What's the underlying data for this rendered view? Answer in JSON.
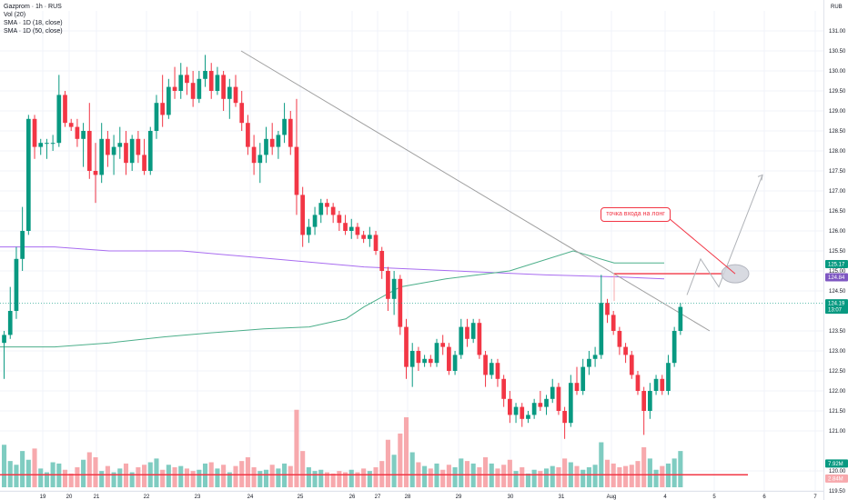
{
  "legend": {
    "symbol_line": "Gazprom · 1h · RUS",
    "vol_line": "Vol (20)",
    "sma1_line": "SMA · 1D (18, close)",
    "sma2_line": "SMA · 1D (50, close)"
  },
  "currency": "RUB",
  "annotation": "точка входа на лонг",
  "colors": {
    "up": "#089981",
    "down": "#f23645",
    "vol_up": "#7fccc1",
    "vol_down": "#f7a9ad",
    "sma18": "#4caf8a",
    "sma50": "#a86cf0",
    "hline": "#f23645",
    "trend": "#9e9e9e"
  },
  "chart_data": {
    "type": "candlestick",
    "ylim": [
      119.5,
      131.5
    ],
    "y_ticks": [
      "131.00",
      "130.50",
      "130.00",
      "129.50",
      "129.00",
      "128.50",
      "128.00",
      "127.50",
      "127.00",
      "126.50",
      "126.00",
      "125.50",
      "125.00",
      "124.50",
      "123.50",
      "123.00",
      "122.50",
      "122.00",
      "121.50",
      "121.00",
      "120.00",
      "119.50"
    ],
    "x_ticks": [
      "19",
      "20",
      "21",
      "22",
      "23",
      "24",
      "25",
      "26",
      "27",
      "28",
      "29",
      "30",
      "31",
      "Aug",
      "4",
      "5",
      "6",
      "7"
    ],
    "candles": [
      {
        "o": 123.2,
        "h": 123.5,
        "l": 122.3,
        "c": 123.4
      },
      {
        "o": 123.4,
        "h": 124.6,
        "l": 123.3,
        "c": 124.0
      },
      {
        "o": 124.0,
        "h": 125.6,
        "l": 123.8,
        "c": 125.3
      },
      {
        "o": 125.3,
        "h": 126.6,
        "l": 125.0,
        "c": 126.0
      },
      {
        "o": 126.0,
        "h": 128.9,
        "l": 125.9,
        "c": 128.8
      },
      {
        "o": 128.8,
        "h": 128.9,
        "l": 127.8,
        "c": 128.1
      },
      {
        "o": 128.1,
        "h": 128.3,
        "l": 127.9,
        "c": 128.2
      },
      {
        "o": 128.2,
        "h": 128.3,
        "l": 127.8,
        "c": 128.2
      },
      {
        "o": 128.2,
        "h": 128.4,
        "l": 128.0,
        "c": 128.2
      },
      {
        "o": 128.2,
        "h": 129.9,
        "l": 128.1,
        "c": 129.4
      },
      {
        "o": 129.4,
        "h": 129.5,
        "l": 128.6,
        "c": 128.7
      },
      {
        "o": 128.7,
        "h": 128.8,
        "l": 128.5,
        "c": 128.6
      },
      {
        "o": 128.6,
        "h": 128.8,
        "l": 128.1,
        "c": 128.3
      },
      {
        "o": 128.3,
        "h": 128.7,
        "l": 127.6,
        "c": 128.5
      },
      {
        "o": 128.5,
        "h": 129.2,
        "l": 127.3,
        "c": 127.5
      },
      {
        "o": 127.5,
        "h": 128.2,
        "l": 126.7,
        "c": 127.4
      },
      {
        "o": 127.4,
        "h": 128.7,
        "l": 127.2,
        "c": 128.3
      },
      {
        "o": 128.3,
        "h": 128.5,
        "l": 127.6,
        "c": 127.9
      },
      {
        "o": 127.9,
        "h": 128.4,
        "l": 127.4,
        "c": 128.1
      },
      {
        "o": 128.1,
        "h": 128.6,
        "l": 127.8,
        "c": 128.2
      },
      {
        "o": 128.2,
        "h": 128.5,
        "l": 127.4,
        "c": 127.7
      },
      {
        "o": 127.7,
        "h": 128.4,
        "l": 127.5,
        "c": 128.3
      },
      {
        "o": 128.3,
        "h": 128.5,
        "l": 127.7,
        "c": 127.9
      },
      {
        "o": 127.9,
        "h": 128.3,
        "l": 127.4,
        "c": 127.5
      },
      {
        "o": 127.5,
        "h": 128.6,
        "l": 127.4,
        "c": 128.5
      },
      {
        "o": 128.5,
        "h": 129.4,
        "l": 128.3,
        "c": 129.2
      },
      {
        "o": 129.2,
        "h": 129.9,
        "l": 128.6,
        "c": 128.9
      },
      {
        "o": 128.9,
        "h": 129.8,
        "l": 128.8,
        "c": 129.6
      },
      {
        "o": 129.6,
        "h": 130.1,
        "l": 129.3,
        "c": 129.5
      },
      {
        "o": 129.5,
        "h": 130.2,
        "l": 129.3,
        "c": 129.9
      },
      {
        "o": 129.9,
        "h": 130.1,
        "l": 129.4,
        "c": 129.7
      },
      {
        "o": 129.7,
        "h": 130.0,
        "l": 129.1,
        "c": 129.3
      },
      {
        "o": 129.3,
        "h": 130.0,
        "l": 129.2,
        "c": 129.8
      },
      {
        "o": 129.8,
        "h": 130.4,
        "l": 129.6,
        "c": 130.0
      },
      {
        "o": 130.0,
        "h": 130.2,
        "l": 129.3,
        "c": 129.5
      },
      {
        "o": 129.5,
        "h": 130.1,
        "l": 129.4,
        "c": 129.9
      },
      {
        "o": 129.9,
        "h": 130.0,
        "l": 129.0,
        "c": 129.3
      },
      {
        "o": 129.3,
        "h": 129.8,
        "l": 128.8,
        "c": 129.6
      },
      {
        "o": 129.6,
        "h": 129.9,
        "l": 129.1,
        "c": 129.2
      },
      {
        "o": 129.2,
        "h": 129.5,
        "l": 128.5,
        "c": 128.7
      },
      {
        "o": 128.7,
        "h": 128.9,
        "l": 127.9,
        "c": 128.1
      },
      {
        "o": 128.1,
        "h": 128.4,
        "l": 127.4,
        "c": 127.7
      },
      {
        "o": 127.7,
        "h": 128.2,
        "l": 127.2,
        "c": 127.9
      },
      {
        "o": 127.9,
        "h": 128.6,
        "l": 127.7,
        "c": 128.3
      },
      {
        "o": 128.3,
        "h": 128.7,
        "l": 127.9,
        "c": 128.1
      },
      {
        "o": 128.1,
        "h": 128.5,
        "l": 127.8,
        "c": 128.4
      },
      {
        "o": 128.4,
        "h": 129.2,
        "l": 128.2,
        "c": 128.8
      },
      {
        "o": 128.8,
        "h": 129.0,
        "l": 127.9,
        "c": 128.1
      },
      {
        "o": 128.1,
        "h": 129.3,
        "l": 126.4,
        "c": 126.9
      },
      {
        "o": 126.9,
        "h": 127.1,
        "l": 125.6,
        "c": 125.9
      },
      {
        "o": 125.9,
        "h": 126.3,
        "l": 125.7,
        "c": 126.1
      },
      {
        "o": 126.1,
        "h": 126.6,
        "l": 125.9,
        "c": 126.4
      },
      {
        "o": 126.4,
        "h": 126.8,
        "l": 126.2,
        "c": 126.7
      },
      {
        "o": 126.7,
        "h": 126.8,
        "l": 126.4,
        "c": 126.6
      },
      {
        "o": 126.6,
        "h": 126.7,
        "l": 126.2,
        "c": 126.4
      },
      {
        "o": 126.4,
        "h": 126.5,
        "l": 126.0,
        "c": 126.2
      },
      {
        "o": 126.2,
        "h": 126.4,
        "l": 125.9,
        "c": 126.0
      },
      {
        "o": 126.0,
        "h": 126.3,
        "l": 125.8,
        "c": 126.1
      },
      {
        "o": 126.1,
        "h": 126.2,
        "l": 125.8,
        "c": 125.9
      },
      {
        "o": 125.9,
        "h": 126.0,
        "l": 125.7,
        "c": 125.8
      },
      {
        "o": 125.8,
        "h": 126.1,
        "l": 125.6,
        "c": 125.9
      },
      {
        "o": 125.9,
        "h": 126.0,
        "l": 125.4,
        "c": 125.5
      },
      {
        "o": 125.5,
        "h": 125.6,
        "l": 124.8,
        "c": 125.0
      },
      {
        "o": 125.0,
        "h": 125.1,
        "l": 124.0,
        "c": 124.3
      },
      {
        "o": 124.3,
        "h": 125.0,
        "l": 123.9,
        "c": 124.8
      },
      {
        "o": 124.8,
        "h": 124.9,
        "l": 123.4,
        "c": 123.6
      },
      {
        "o": 123.6,
        "h": 123.8,
        "l": 122.3,
        "c": 122.6
      },
      {
        "o": 122.6,
        "h": 123.2,
        "l": 122.1,
        "c": 123.0
      },
      {
        "o": 123.0,
        "h": 123.1,
        "l": 122.5,
        "c": 122.7
      },
      {
        "o": 122.7,
        "h": 122.9,
        "l": 122.6,
        "c": 122.8
      },
      {
        "o": 122.8,
        "h": 122.9,
        "l": 122.6,
        "c": 122.7
      },
      {
        "o": 122.7,
        "h": 123.3,
        "l": 122.6,
        "c": 123.2
      },
      {
        "o": 123.2,
        "h": 123.4,
        "l": 122.9,
        "c": 123.1
      },
      {
        "o": 123.1,
        "h": 123.2,
        "l": 122.4,
        "c": 122.5
      },
      {
        "o": 122.5,
        "h": 123.0,
        "l": 122.4,
        "c": 122.9
      },
      {
        "o": 122.9,
        "h": 123.8,
        "l": 122.8,
        "c": 123.6
      },
      {
        "o": 123.6,
        "h": 123.8,
        "l": 123.1,
        "c": 123.3
      },
      {
        "o": 123.3,
        "h": 123.8,
        "l": 123.2,
        "c": 123.7
      },
      {
        "o": 123.7,
        "h": 123.8,
        "l": 122.8,
        "c": 122.9
      },
      {
        "o": 122.9,
        "h": 123.0,
        "l": 122.1,
        "c": 122.4
      },
      {
        "o": 122.4,
        "h": 122.8,
        "l": 122.3,
        "c": 122.7
      },
      {
        "o": 122.7,
        "h": 122.8,
        "l": 122.1,
        "c": 122.3
      },
      {
        "o": 122.3,
        "h": 122.4,
        "l": 121.6,
        "c": 121.8
      },
      {
        "o": 121.8,
        "h": 122.0,
        "l": 121.2,
        "c": 121.4
      },
      {
        "o": 121.4,
        "h": 121.7,
        "l": 121.2,
        "c": 121.6
      },
      {
        "o": 121.6,
        "h": 121.7,
        "l": 121.1,
        "c": 121.3
      },
      {
        "o": 121.3,
        "h": 121.5,
        "l": 121.2,
        "c": 121.4
      },
      {
        "o": 121.4,
        "h": 121.8,
        "l": 121.3,
        "c": 121.7
      },
      {
        "o": 121.7,
        "h": 122.0,
        "l": 121.5,
        "c": 121.6
      },
      {
        "o": 121.6,
        "h": 121.9,
        "l": 121.4,
        "c": 121.8
      },
      {
        "o": 121.8,
        "h": 122.3,
        "l": 121.7,
        "c": 122.1
      },
      {
        "o": 122.1,
        "h": 122.2,
        "l": 121.4,
        "c": 121.5
      },
      {
        "o": 121.5,
        "h": 121.6,
        "l": 120.8,
        "c": 121.2
      },
      {
        "o": 121.2,
        "h": 122.4,
        "l": 121.1,
        "c": 122.2
      },
      {
        "o": 122.2,
        "h": 122.6,
        "l": 121.9,
        "c": 122.0
      },
      {
        "o": 122.0,
        "h": 122.8,
        "l": 121.9,
        "c": 122.6
      },
      {
        "o": 122.6,
        "h": 123.0,
        "l": 122.4,
        "c": 122.8
      },
      {
        "o": 122.8,
        "h": 123.1,
        "l": 122.6,
        "c": 122.9
      },
      {
        "o": 122.9,
        "h": 124.9,
        "l": 122.8,
        "c": 124.2
      },
      {
        "o": 124.2,
        "h": 124.3,
        "l": 123.7,
        "c": 123.9
      },
      {
        "o": 123.9,
        "h": 124.0,
        "l": 123.4,
        "c": 123.5
      },
      {
        "o": 123.5,
        "h": 123.6,
        "l": 122.9,
        "c": 123.1
      },
      {
        "o": 123.1,
        "h": 123.2,
        "l": 122.7,
        "c": 122.9
      },
      {
        "o": 122.9,
        "h": 123.0,
        "l": 122.3,
        "c": 122.4
      },
      {
        "o": 122.4,
        "h": 122.5,
        "l": 121.9,
        "c": 122.0
      },
      {
        "o": 122.0,
        "h": 122.1,
        "l": 120.9,
        "c": 121.5
      },
      {
        "o": 121.5,
        "h": 122.2,
        "l": 121.3,
        "c": 122.0
      },
      {
        "o": 122.0,
        "h": 122.4,
        "l": 121.9,
        "c": 122.3
      },
      {
        "o": 122.3,
        "h": 122.4,
        "l": 121.9,
        "c": 122.0
      },
      {
        "o": 122.0,
        "h": 122.9,
        "l": 121.9,
        "c": 122.7
      },
      {
        "o": 122.7,
        "h": 123.6,
        "l": 122.6,
        "c": 123.5
      },
      {
        "o": 123.5,
        "h": 124.2,
        "l": 123.4,
        "c": 124.1
      }
    ],
    "volumes": [
      3.4,
      2.1,
      1.8,
      2.9,
      2.2,
      3.1,
      1.5,
      1.2,
      2.0,
      1.9,
      1.4,
      1.1,
      1.6,
      2.2,
      2.8,
      2.4,
      1.3,
      1.7,
      1.2,
      1.5,
      1.9,
      1.2,
      1.6,
      1.8,
      2.0,
      2.3,
      1.4,
      1.8,
      1.6,
      1.7,
      1.5,
      1.3,
      1.4,
      1.9,
      2.0,
      1.5,
      1.8,
      1.2,
      1.7,
      2.1,
      2.4,
      1.6,
      1.3,
      1.4,
      1.8,
      1.5,
      1.9,
      1.7,
      6.2,
      2.9,
      1.6,
      1.3,
      1.4,
      1.2,
      1.1,
      1.3,
      1.2,
      1.4,
      1.2,
      1.5,
      1.3,
      1.6,
      2.1,
      3.8,
      2.6,
      4.3,
      5.6,
      2.8,
      2.0,
      1.7,
      1.5,
      1.9,
      1.4,
      1.8,
      1.6,
      2.3,
      2.1,
      1.9,
      1.6,
      2.4,
      1.9,
      1.5,
      1.8,
      2.2,
      1.3,
      1.6,
      1.1,
      1.4,
      1.3,
      1.5,
      1.7,
      1.6,
      2.3,
      2.0,
      1.7,
      1.4,
      1.6,
      1.8,
      3.6,
      2.2,
      1.9,
      1.6,
      1.7,
      1.8,
      2.1,
      3.2,
      2.3,
      1.4,
      1.7,
      1.9,
      2.3,
      2.9
    ],
    "vol_ylim": [
      0,
      8
    ],
    "sma18": {
      "name": "SMA · 1D (18, close)",
      "points": [
        [
          0,
          123.1
        ],
        [
          60,
          123.1
        ],
        [
          120,
          123.2
        ],
        [
          180,
          123.35
        ],
        [
          230,
          123.45
        ],
        [
          290,
          123.55
        ],
        [
          340,
          123.6
        ],
        [
          380,
          123.8
        ],
        [
          400,
          124.1
        ],
        [
          440,
          124.6
        ],
        [
          490,
          124.8
        ],
        [
          560,
          125.0
        ],
        [
          630,
          125.5
        ],
        [
          675,
          125.2
        ],
        [
          730,
          125.2
        ]
      ]
    },
    "sma50": {
      "name": "SMA · 1D (50, close)",
      "points": [
        [
          0,
          125.6
        ],
        [
          60,
          125.6
        ],
        [
          120,
          125.5
        ],
        [
          200,
          125.5
        ],
        [
          300,
          125.3
        ],
        [
          400,
          125.1
        ],
        [
          500,
          125.0
        ],
        [
          600,
          124.9
        ],
        [
          680,
          124.85
        ],
        [
          730,
          124.8
        ]
      ]
    },
    "trendline": [
      [
        265,
        130.5
      ],
      [
        780,
        123.5
      ]
    ],
    "hline_entry": {
      "value": 124.93,
      "x_from": 675,
      "x_to": 795
    },
    "hline_volume": {
      "value": 1.0
    },
    "projection": [
      [
        755,
        124.4
      ],
      [
        770,
        125.3
      ],
      [
        790,
        124.6
      ],
      [
        838,
        127.4
      ]
    ],
    "entry_ellipse": {
      "cx": 808,
      "value": 124.93
    },
    "price_badges": [
      {
        "label": "125.17",
        "value": 125.17,
        "color": "#089981"
      },
      {
        "label": "124.84",
        "value": 124.84,
        "color": "#7e57c2"
      },
      {
        "label": "124.19",
        "sub": "13:07",
        "value": 124.19,
        "color": "#089981"
      }
    ],
    "vol_badges": [
      {
        "label": "7.92M",
        "value": 1.9,
        "color": "#089981"
      },
      {
        "label": "2.84M",
        "value": 0.7,
        "color": "#f7a9ad"
      }
    ]
  }
}
